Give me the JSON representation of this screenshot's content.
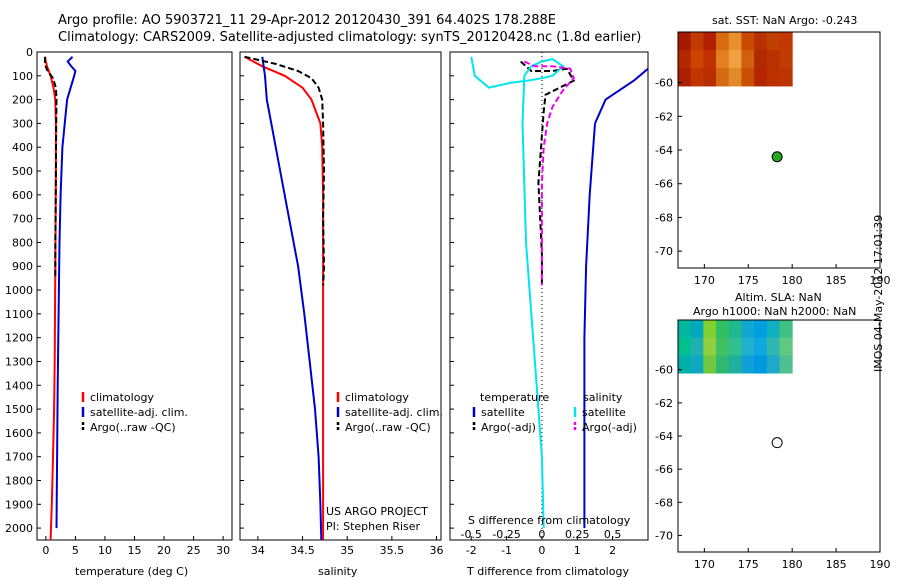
{
  "header": {
    "line1": "Argo profile: AO 5903721_11 29-Apr-2012 20120430_391 64.402S 178.288E",
    "line2": "Climatology: CARS2009. Satellite-adjusted climatology: synTS_20120428.nc (1.8d earlier)"
  },
  "side_note": "IMOS 04-May-2012 17:01:39",
  "credits": {
    "line1": "US ARGO PROJECT",
    "line2": "PI: Stephen Riser"
  },
  "colors": {
    "climatology": "#ff0000",
    "satellite": "#0000cc",
    "argo": "#000000",
    "s_sat": "#00e5ee",
    "s_argo": "#ee00ee",
    "map_marker": "#22aa22"
  },
  "chart_data": [
    {
      "type": "line",
      "id": "temperature",
      "xlabel": "temperature (deg C)",
      "ylim": [
        2050,
        0
      ],
      "xlim": [
        -1.5,
        31.5
      ],
      "xticks": [
        0,
        5,
        10,
        15,
        20,
        25,
        30
      ],
      "yticks": [
        0,
        100,
        200,
        300,
        400,
        500,
        600,
        700,
        800,
        900,
        1000,
        1100,
        1200,
        1300,
        1400,
        1500,
        1600,
        1700,
        1800,
        1900,
        2000
      ],
      "legend": [
        "climatology",
        "satellite-adj. clim.",
        "Argo(..raw -QC)"
      ],
      "series": [
        {
          "name": "climatology",
          "x": [
            -0.2,
            0.2,
            0.8,
            1.3,
            1.6,
            1.7,
            1.7,
            1.65,
            1.6,
            1.55,
            1.5,
            1.4,
            1.2,
            1.0,
            0.8
          ],
          "y": [
            20,
            60,
            100,
            150,
            200,
            300,
            500,
            700,
            900,
            1100,
            1300,
            1500,
            1700,
            1900,
            2050
          ]
        },
        {
          "name": "satellite-adj. clim.",
          "x": [
            4.5,
            3.7,
            4.3,
            5.0,
            4.8,
            3.6,
            2.8,
            2.5,
            2.3,
            2.2,
            2.1,
            2.0,
            1.9,
            1.8
          ],
          "y": [
            20,
            40,
            60,
            80,
            100,
            200,
            400,
            600,
            800,
            1000,
            1200,
            1400,
            1700,
            2000
          ]
        },
        {
          "name": "Argo(..raw -QC)",
          "x": [
            -0.1,
            -0.2,
            0.3,
            1.2,
            1.7,
            1.8,
            1.75,
            1.7,
            1.65,
            1.6,
            1.6,
            1.6
          ],
          "y": [
            20,
            50,
            80,
            110,
            150,
            200,
            300,
            500,
            700,
            800,
            900,
            950
          ]
        }
      ]
    },
    {
      "type": "line",
      "id": "salinity",
      "xlabel": "salinity",
      "ylim": [
        2050,
        0
      ],
      "xlim": [
        33.8,
        36.05
      ],
      "xticks": [
        34,
        34.5,
        35,
        35.5,
        36
      ],
      "xticklabels": [
        "34",
        "34.5",
        "35",
        "35.5",
        "36"
      ],
      "legend": [
        "climatology",
        "satellite-adj. clim.",
        "Argo(..raw -QC)"
      ],
      "series": [
        {
          "name": "climatology",
          "x": [
            33.85,
            34.05,
            34.3,
            34.5,
            34.6,
            34.65,
            34.7,
            34.72,
            34.73,
            34.73,
            34.73,
            34.73,
            34.73
          ],
          "y": [
            20,
            60,
            100,
            150,
            200,
            250,
            300,
            400,
            600,
            800,
            1000,
            1500,
            2050
          ]
        },
        {
          "name": "satellite-adj. clim.",
          "x": [
            34.05,
            34.08,
            34.1,
            34.15,
            34.25,
            34.35,
            34.45,
            34.52,
            34.58,
            34.64,
            34.68,
            34.7,
            34.71
          ],
          "y": [
            20,
            100,
            200,
            300,
            500,
            700,
            900,
            1100,
            1300,
            1500,
            1700,
            1900,
            2050
          ]
        },
        {
          "name": "Argo(..raw -QC)",
          "x": [
            33.85,
            34.2,
            34.45,
            34.6,
            34.68,
            34.72,
            34.73,
            34.74,
            34.73,
            34.74,
            34.73
          ],
          "y": [
            20,
            50,
            80,
            110,
            150,
            200,
            300,
            500,
            700,
            900,
            980
          ]
        }
      ]
    },
    {
      "type": "line",
      "id": "difference",
      "xlabel": "T difference from climatology",
      "xlabel2": "S difference from climatology",
      "ylim": [
        2050,
        0
      ],
      "xlim": [
        -2.6,
        3.0
      ],
      "xticks": [
        -2,
        -1,
        0,
        1,
        2
      ],
      "xticks_s": [
        -0.5,
        -0.25,
        0,
        0.25,
        0.5
      ],
      "xticks_s_pos": [
        -2,
        -1,
        0,
        1,
        2
      ],
      "legend_headers": [
        "temperature",
        "salinity"
      ],
      "legend": [
        "satellite",
        "Argo(-adj)",
        "satellite",
        "Argo(-adj)"
      ],
      "series": [
        {
          "name": "T satellite",
          "x": [
            1.5,
            1.8,
            2.6,
            3.0
          ],
          "y": [
            300,
            200,
            120,
            70
          ]
        },
        {
          "name": "T satellite (deep)",
          "x": [
            1.5,
            1.35,
            1.25,
            1.2,
            1.2,
            1.2,
            1.2,
            1.2
          ],
          "y": [
            300,
            600,
            900,
            1200,
            1500,
            1700,
            1900,
            2000
          ]
        },
        {
          "name": "T Argo(-adj)",
          "x": [
            -0.6,
            -0.3,
            0.3,
            0.7,
            0.9,
            0.1,
            0.05,
            0.0,
            -0.05,
            -0.1,
            -0.05,
            0,
            0
          ],
          "y": [
            40,
            80,
            80,
            70,
            120,
            180,
            250,
            350,
            450,
            550,
            700,
            850,
            980
          ]
        },
        {
          "name": "S satellite",
          "x": [
            -2.0,
            -1.9,
            -1.5,
            -0.9,
            -0.4,
            0.0,
            0.3,
            0.6,
            0.3,
            0.0,
            -0.3,
            -0.5,
            -0.55,
            -0.45,
            -0.2,
            0.0,
            0.05
          ],
          "y": [
            20,
            100,
            150,
            130,
            120,
            110,
            100,
            60,
            30,
            40,
            60,
            100,
            300,
            800,
            1300,
            1700,
            2000
          ]
        },
        {
          "name": "S Argo(-adj)",
          "x": [
            -0.5,
            -0.2,
            0.3,
            0.8,
            0.9,
            0.6,
            0.3,
            0.15,
            0.05,
            0.0,
            0.0,
            0.0,
            0.0
          ],
          "y": [
            40,
            60,
            60,
            70,
            110,
            160,
            230,
            300,
            400,
            550,
            700,
            850,
            980
          ]
        }
      ]
    },
    {
      "type": "heatmap",
      "id": "sst_map",
      "title": "sat. SST: NaN Argo: -0.243",
      "xlim": [
        167,
        190
      ],
      "ylim": [
        -71,
        -57
      ],
      "xticks": [
        170,
        175,
        180,
        185,
        190
      ],
      "yticks": [
        -60,
        -62,
        -64,
        -66,
        -68,
        -70
      ],
      "marker": {
        "x": 178.288,
        "y": -64.402
      }
    },
    {
      "type": "heatmap",
      "id": "sla_map",
      "title": "Altim. SLA: NaN",
      "title2": "Argo h1000: NaN h2000: NaN",
      "xlim": [
        167,
        190
      ],
      "ylim": [
        -71,
        -57
      ],
      "xticks": [
        170,
        175,
        180,
        185,
        190
      ],
      "yticks": [
        -60,
        -62,
        -64,
        -66,
        -68,
        -70
      ],
      "marker": {
        "x": 178.288,
        "y": -64.402
      }
    }
  ]
}
